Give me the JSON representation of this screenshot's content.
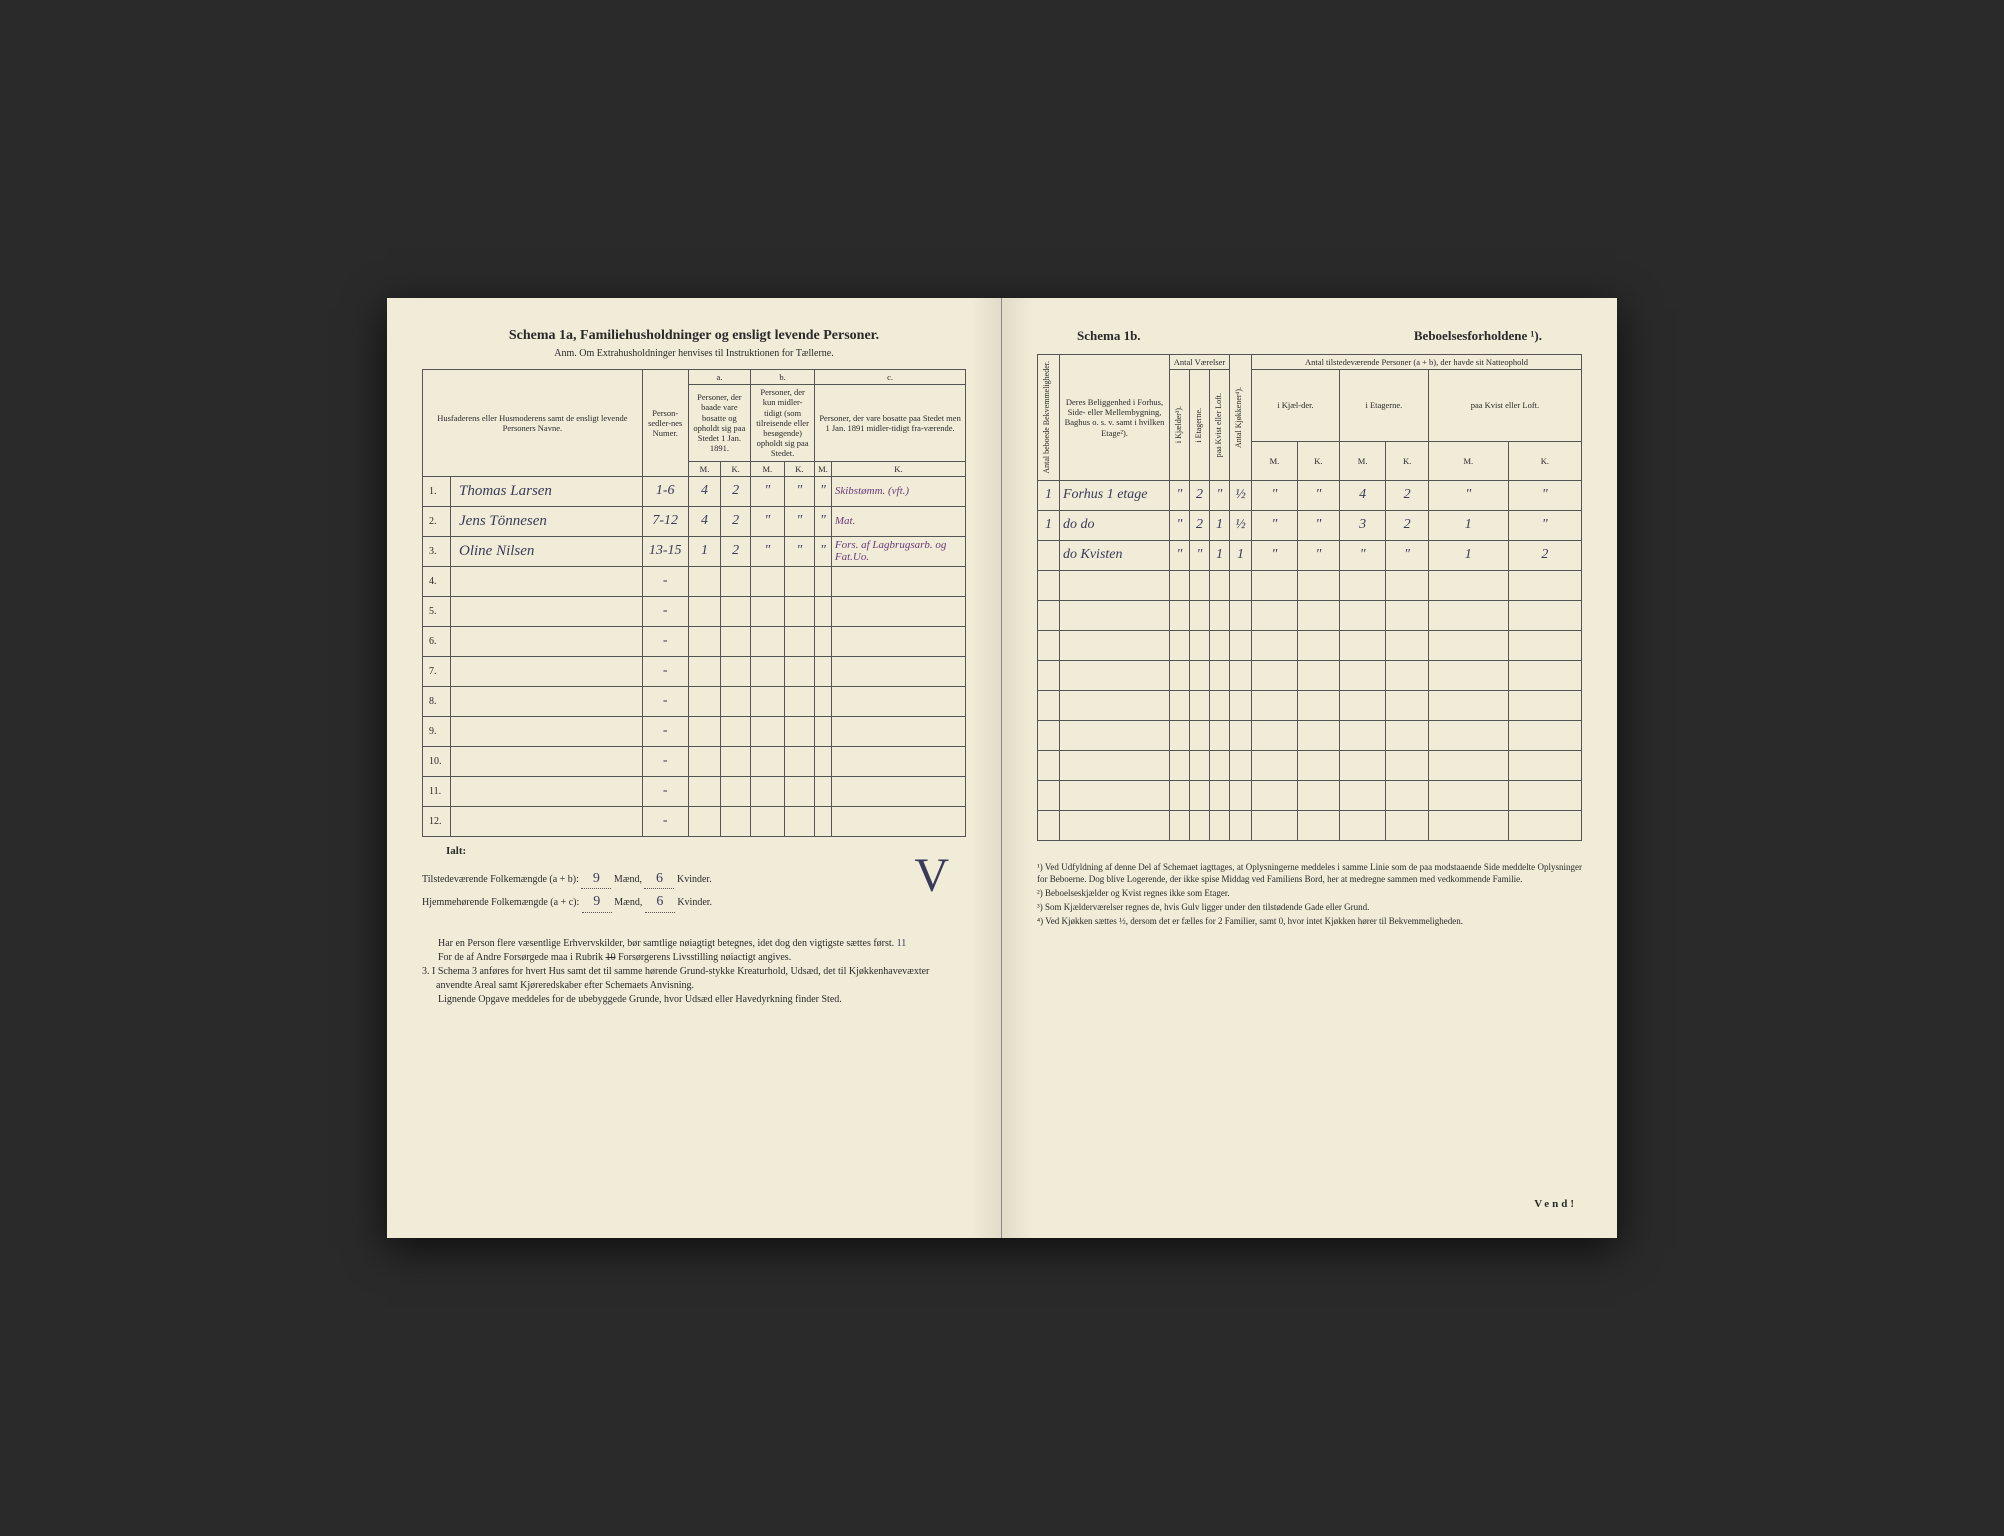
{
  "left": {
    "title": "Schema 1a,  Familiehusholdninger og ensligt levende Personer.",
    "subtitle": "Anm. Om Extrahusholdninger henvises til Instruktionen for Tællerne.",
    "headers": {
      "col1": "Husfaderens eller Husmoderens samt de ensligt levende Personers Navne.",
      "col2": "Person-sedler-nes Numer.",
      "a_label": "a.",
      "a_text": "Personer, der baade vare bosatte og opholdt sig paa Stedet 1 Jan. 1891.",
      "b_label": "b.",
      "b_text": "Personer, der kun midler-tidigt (som tilreisende eller besøgende) opholdt sig paa Stedet.",
      "c_label": "c.",
      "c_text": "Personer, der vare bosatte paa Stedet men 1 Jan. 1891 midler-tidigt fra-værende.",
      "M": "M.",
      "K": "K."
    },
    "rows": [
      {
        "num": "1.",
        "name": "Thomas Larsen",
        "numer": "1-6",
        "aM": "4",
        "aK": "2",
        "bM": "\"",
        "bK": "\"",
        "cM": "\"",
        "cK": "Skibstømm. (vft.)"
      },
      {
        "num": "2.",
        "name": "Jens Tönnesen",
        "numer": "7-12",
        "aM": "4",
        "aK": "2",
        "bM": "\"",
        "bK": "\"",
        "cM": "\"",
        "cK": "Mat."
      },
      {
        "num": "3.",
        "name": "Oline Nilsen",
        "numer": "13-15",
        "aM": "1",
        "aK": "2",
        "bM": "\"",
        "bK": "\"",
        "cM": "\"",
        "cK": "Fors. af Lagbrugsarb. og Fat.Uo."
      },
      {
        "num": "4.",
        "name": "",
        "numer": "-"
      },
      {
        "num": "5.",
        "name": "",
        "numer": "-"
      },
      {
        "num": "6.",
        "name": "",
        "numer": "-"
      },
      {
        "num": "7.",
        "name": "",
        "numer": "-"
      },
      {
        "num": "8.",
        "name": "",
        "numer": "-"
      },
      {
        "num": "9.",
        "name": "",
        "numer": "-"
      },
      {
        "num": "10.",
        "name": "",
        "numer": "-"
      },
      {
        "num": "11.",
        "name": "",
        "numer": "-"
      },
      {
        "num": "12.",
        "name": "",
        "numer": "-"
      }
    ],
    "ialt": "Ialt:",
    "totals": {
      "line1_label": "Tilstedeværende Folkemængde (a + b):",
      "line1_m": "9",
      "line1_m_unit": "Mænd,",
      "line1_k": "6",
      "line1_k_unit": "Kvinder.",
      "line2_label": "Hjemmehørende Folkemængde (a + c):",
      "line2_m": "9",
      "line2_m_unit": "Mænd,",
      "line2_k": "6",
      "line2_k_unit": "Kvinder."
    },
    "footer": {
      "p1": "Har en Person flere væsentlige Erhvervskilder, bør samtlige nøiagtigt betegnes, idet dog den vigtigste sættes først. ",
      "p1_hand": "11",
      "p2a": "For de af Andre Forsørgede maa i Rubrik ",
      "p2strike": "10",
      "p2b": " Forsørgerens Livsstilling nøiactigt angives.",
      "p3_num": "3.",
      "p3": "I Schema 3 anføres for hvert Hus samt det til samme hørende Grund-stykke Kreaturhold, Udsæd, det til Kjøkkenhavevæxter anvendte Areal samt Kjøreredskaber efter Schemaets Anvisning.",
      "p4": "Lignende Opgave meddeles for de ubebyggede Grunde, hvor Udsæd eller Havedyrkning finder Sted."
    }
  },
  "right": {
    "title_left": "Schema 1b.",
    "title_right": "Beboelsesforholdene ¹).",
    "headers": {
      "col0": "Antal beboede Bekvemmeligheder.",
      "col1": "Deres Beliggenhed i Forhus, Side- eller Mellembygning, Baghus o. s. v. samt i hvilken Etage²).",
      "antal_v": "Antal Værelser",
      "v1": "i Kjælder³).",
      "v2": "i Etagerne.",
      "v3": "paa Kvist eller Loft.",
      "kjok": "Antal Kjøkkener⁴).",
      "tilst": "Antal tilstedeværende Personer (a + b), der havde sit Natteophold",
      "t1": "i Kjæl-der.",
      "t2": "i Etagerne.",
      "t3": "paa Kvist eller Loft.",
      "M": "M.",
      "K": "K."
    },
    "rows": [
      {
        "bk": "1",
        "loc": "Forhus 1 etage",
        "v1": "\"",
        "v2": "2",
        "v3": "\"",
        "kj": "½",
        "t1m": "\"",
        "t1k": "\"",
        "t2m": "4",
        "t2k": "2",
        "t3m": "\"",
        "t3k": "\""
      },
      {
        "bk": "1",
        "loc": "do   do",
        "v1": "\"",
        "v2": "2",
        "v3": "1",
        "kj": "½",
        "t1m": "\"",
        "t1k": "\"",
        "t2m": "3",
        "t2k": "2",
        "t3m": "1",
        "t3k": "\""
      },
      {
        "bk": "",
        "loc": "do   Kvisten",
        "v1": "\"",
        "v2": "\"",
        "v3": "1",
        "kj": "1",
        "t1m": "\"",
        "t1k": "\"",
        "t2m": "\"",
        "t2k": "\"",
        "t3m": "1",
        "t3k": "2"
      },
      {},
      {},
      {},
      {},
      {},
      {},
      {},
      {},
      {}
    ],
    "footnotes": {
      "n1": "¹) Ved Udfyldning af denne Del af Schemaet iagttages, at Oplysningerne meddeles i samme Linie som de paa modstaaende Side meddelte Oplysninger for Beboerne. Dog blive Logerende, der ikke spise Middag ved Familiens Bord, her at medregne sammen med vedkommende Familie.",
      "n2": "²) Beboelseskjælder og Kvist regnes ikke som Etager.",
      "n3": "³) Som Kjælderværelser regnes de, hvis Gulv ligger under den tilstødende Gade eller Grund.",
      "n4": "⁴) Ved Kjøkken sættes ½, dersom det er fælles for 2 Familier, samt 0, hvor intet Kjøkken hører til Bekvemmeligheden."
    },
    "vendi": "Vend!"
  }
}
